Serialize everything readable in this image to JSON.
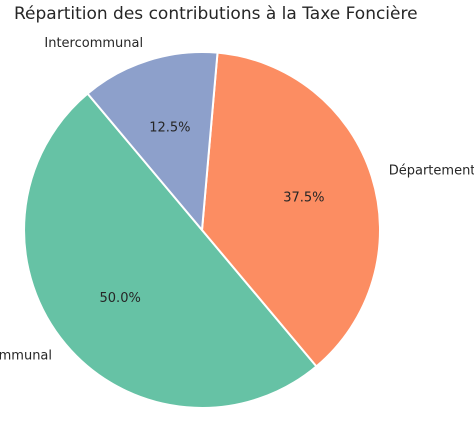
{
  "chart_data": {
    "type": "pie",
    "title": "Répartition des contributions à la Taxe Foncière",
    "categories": [
      "Communal",
      "Départemental",
      "Intercommunal"
    ],
    "values": [
      50.0,
      37.5,
      12.5
    ],
    "value_labels": [
      "50.0%",
      "37.5%",
      "12.5%"
    ],
    "colors": [
      "#66c2a5",
      "#fc8d62",
      "#8da0cb"
    ],
    "start_angle_deg": 130,
    "direction": "counterclockwise",
    "legend": "none"
  }
}
